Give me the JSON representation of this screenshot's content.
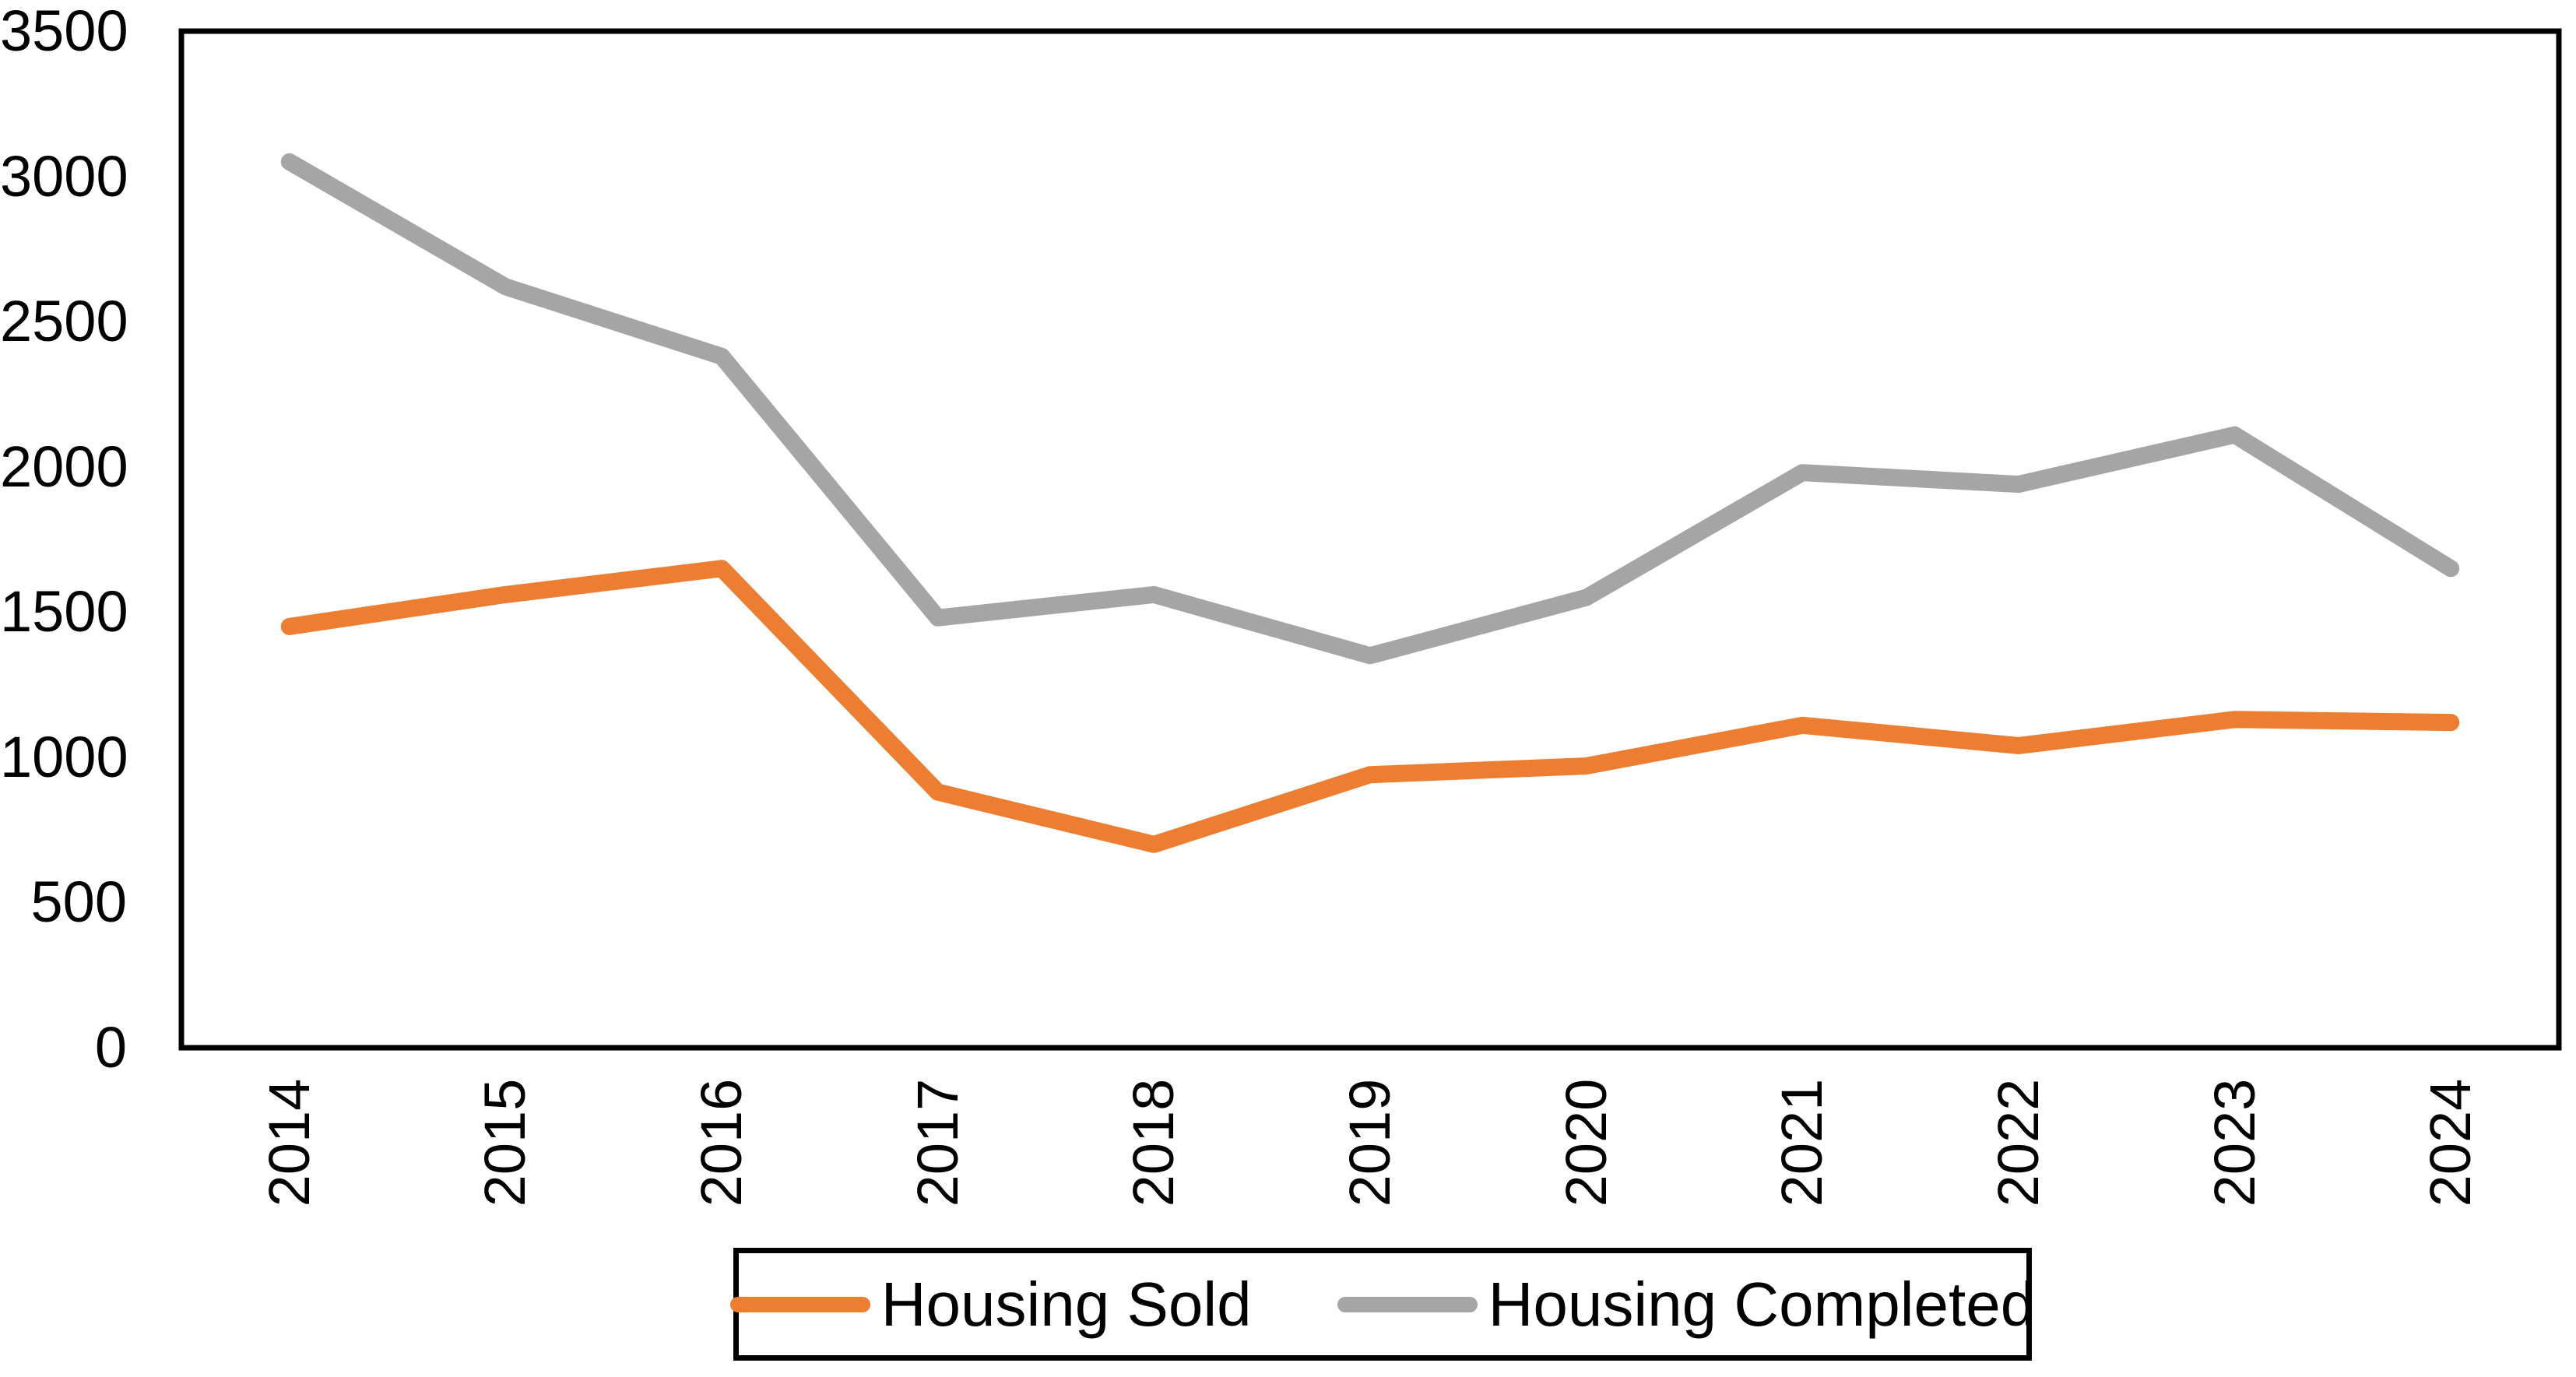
{
  "chart_data": {
    "type": "line",
    "title": "",
    "xlabel": "",
    "ylabel": "",
    "categories": [
      "2014",
      "2015",
      "2016",
      "2017",
      "2018",
      "2019",
      "2020",
      "2021",
      "2022",
      "2023",
      "2024"
    ],
    "series": [
      {
        "name": "Housing Sold",
        "color": "#ED7D31",
        "values": [
          1450,
          1560,
          1650,
          880,
          700,
          940,
          970,
          1110,
          1040,
          1130,
          1120
        ]
      },
      {
        "name": "Housing Completed",
        "color": "#A5A5A5",
        "values": [
          3050,
          2620,
          2380,
          1480,
          1560,
          1350,
          1550,
          1980,
          1940,
          2110,
          1650
        ]
      }
    ],
    "y_ticks": [
      3500,
      3000,
      2500,
      2000,
      1500,
      1000,
      500,
      0
    ],
    "ylim": [
      0,
      3500
    ],
    "grid": false,
    "plot_border": true,
    "legend_position": "bottom",
    "line_width": 22,
    "axis_color": "#000000",
    "background_color": "#FFFFFF"
  }
}
